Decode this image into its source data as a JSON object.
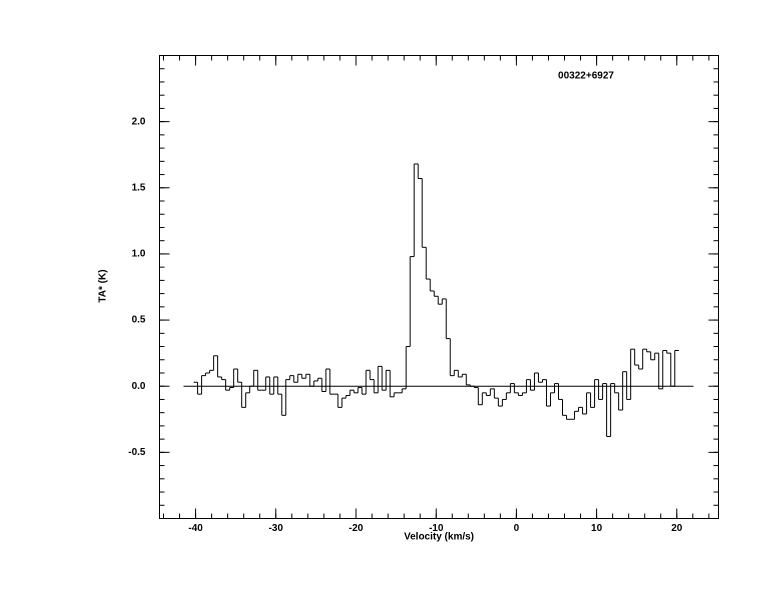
{
  "chart_data": {
    "type": "step",
    "title": "00322+6927",
    "xlabel": "Velocity (km/s)",
    "ylabel": "TA* (K)",
    "xlim": [
      -44.5,
      25.2
    ],
    "ylim": [
      -1.0,
      2.5
    ],
    "xticks": [
      -40,
      -30,
      -20,
      -10,
      0,
      10,
      20
    ],
    "yticks": [
      {
        "value": -0.5,
        "label": "-0.5"
      },
      {
        "value": 0,
        "label": "0.0"
      },
      {
        "value": 0.5,
        "label": "0.5"
      },
      {
        "value": 1,
        "label": "1.0"
      },
      {
        "value": 1.5,
        "label": "1.5"
      },
      {
        "value": 2,
        "label": "2.0"
      }
    ],
    "color": "#000000",
    "x": [
      -40,
      -39.5,
      -39,
      -38.5,
      -38,
      -37.5,
      -37,
      -36.5,
      -36,
      -35.5,
      -35,
      -34.5,
      -34,
      -33.5,
      -33,
      -32.5,
      -32,
      -31.5,
      -31,
      -30.5,
      -30,
      -29.5,
      -29,
      -28.5,
      -28,
      -27.5,
      -27,
      -26.5,
      -26,
      -25.5,
      -25,
      -24.5,
      -24,
      -23.5,
      -23,
      -22.5,
      -22,
      -21.5,
      -21,
      -20.5,
      -20,
      -19.5,
      -19,
      -18.5,
      -18,
      -17.5,
      -17,
      -16.5,
      -16,
      -15.5,
      -15,
      -14.5,
      -14,
      -13.5,
      -13,
      -12.5,
      -12,
      -11.5,
      -11,
      -10.5,
      -10,
      -9.5,
      -9,
      -8.5,
      -8,
      -7.5,
      -7,
      -6.5,
      -6,
      -5.5,
      -5,
      -4.5,
      -4,
      -3.5,
      -3,
      -2.5,
      -2,
      -1.5,
      -1,
      -0.5,
      0,
      0.5,
      1,
      1.5,
      2,
      2.5,
      3,
      3.5,
      4,
      4.5,
      5,
      5.5,
      6,
      6.5,
      7,
      7.5,
      8,
      8.5,
      9,
      9.5,
      10,
      10.5,
      11,
      11.5,
      12,
      12.5,
      13,
      13.5,
      14,
      14.5,
      15,
      15.5,
      16,
      16.5,
      17,
      17.5,
      18,
      18.5,
      19,
      19.5,
      20
    ],
    "values": [
      0.03,
      -0.06,
      0.08,
      0.1,
      0.12,
      0.23,
      0.07,
      0.05,
      -0.03,
      -0.01,
      0.13,
      0.03,
      -0.16,
      -0.05,
      0.0,
      0.12,
      -0.03,
      -0.03,
      0.07,
      -0.06,
      0.07,
      -0.06,
      -0.22,
      0.05,
      0.08,
      0.03,
      0.09,
      0.06,
      0.09,
      0.0,
      0.04,
      0.06,
      -0.04,
      0.13,
      -0.06,
      -0.06,
      -0.16,
      -0.09,
      -0.07,
      -0.03,
      -0.05,
      -0.01,
      -0.06,
      0.12,
      0.05,
      -0.05,
      0.15,
      -0.03,
      0.12,
      -0.08,
      -0.05,
      -0.05,
      -0.02,
      0.3,
      0.98,
      1.68,
      1.57,
      1.05,
      0.81,
      0.72,
      0.68,
      0.62,
      0.66,
      0.36,
      0.08,
      0.12,
      0.07,
      0.09,
      0.01,
      0.0,
      -0.01,
      -0.14,
      -0.05,
      -0.07,
      -0.02,
      -0.09,
      -0.15,
      -0.1,
      -0.05,
      0.02,
      -0.05,
      -0.07,
      -0.05,
      0.05,
      -0.03,
      0.1,
      0.03,
      0.05,
      -0.15,
      -0.05,
      0.02,
      -0.1,
      -0.22,
      -0.25,
      -0.25,
      -0.19,
      -0.16,
      -0.21,
      -0.05,
      -0.16,
      0.05,
      -0.1,
      0.02,
      -0.38,
      0.02,
      -0.05,
      -0.18,
      0.11,
      -0.1,
      0.28,
      0.16,
      0.13,
      0.28,
      0.26,
      0.2,
      0.25,
      -0.02,
      0.27,
      0.25,
      0.0,
      0.27
    ]
  }
}
